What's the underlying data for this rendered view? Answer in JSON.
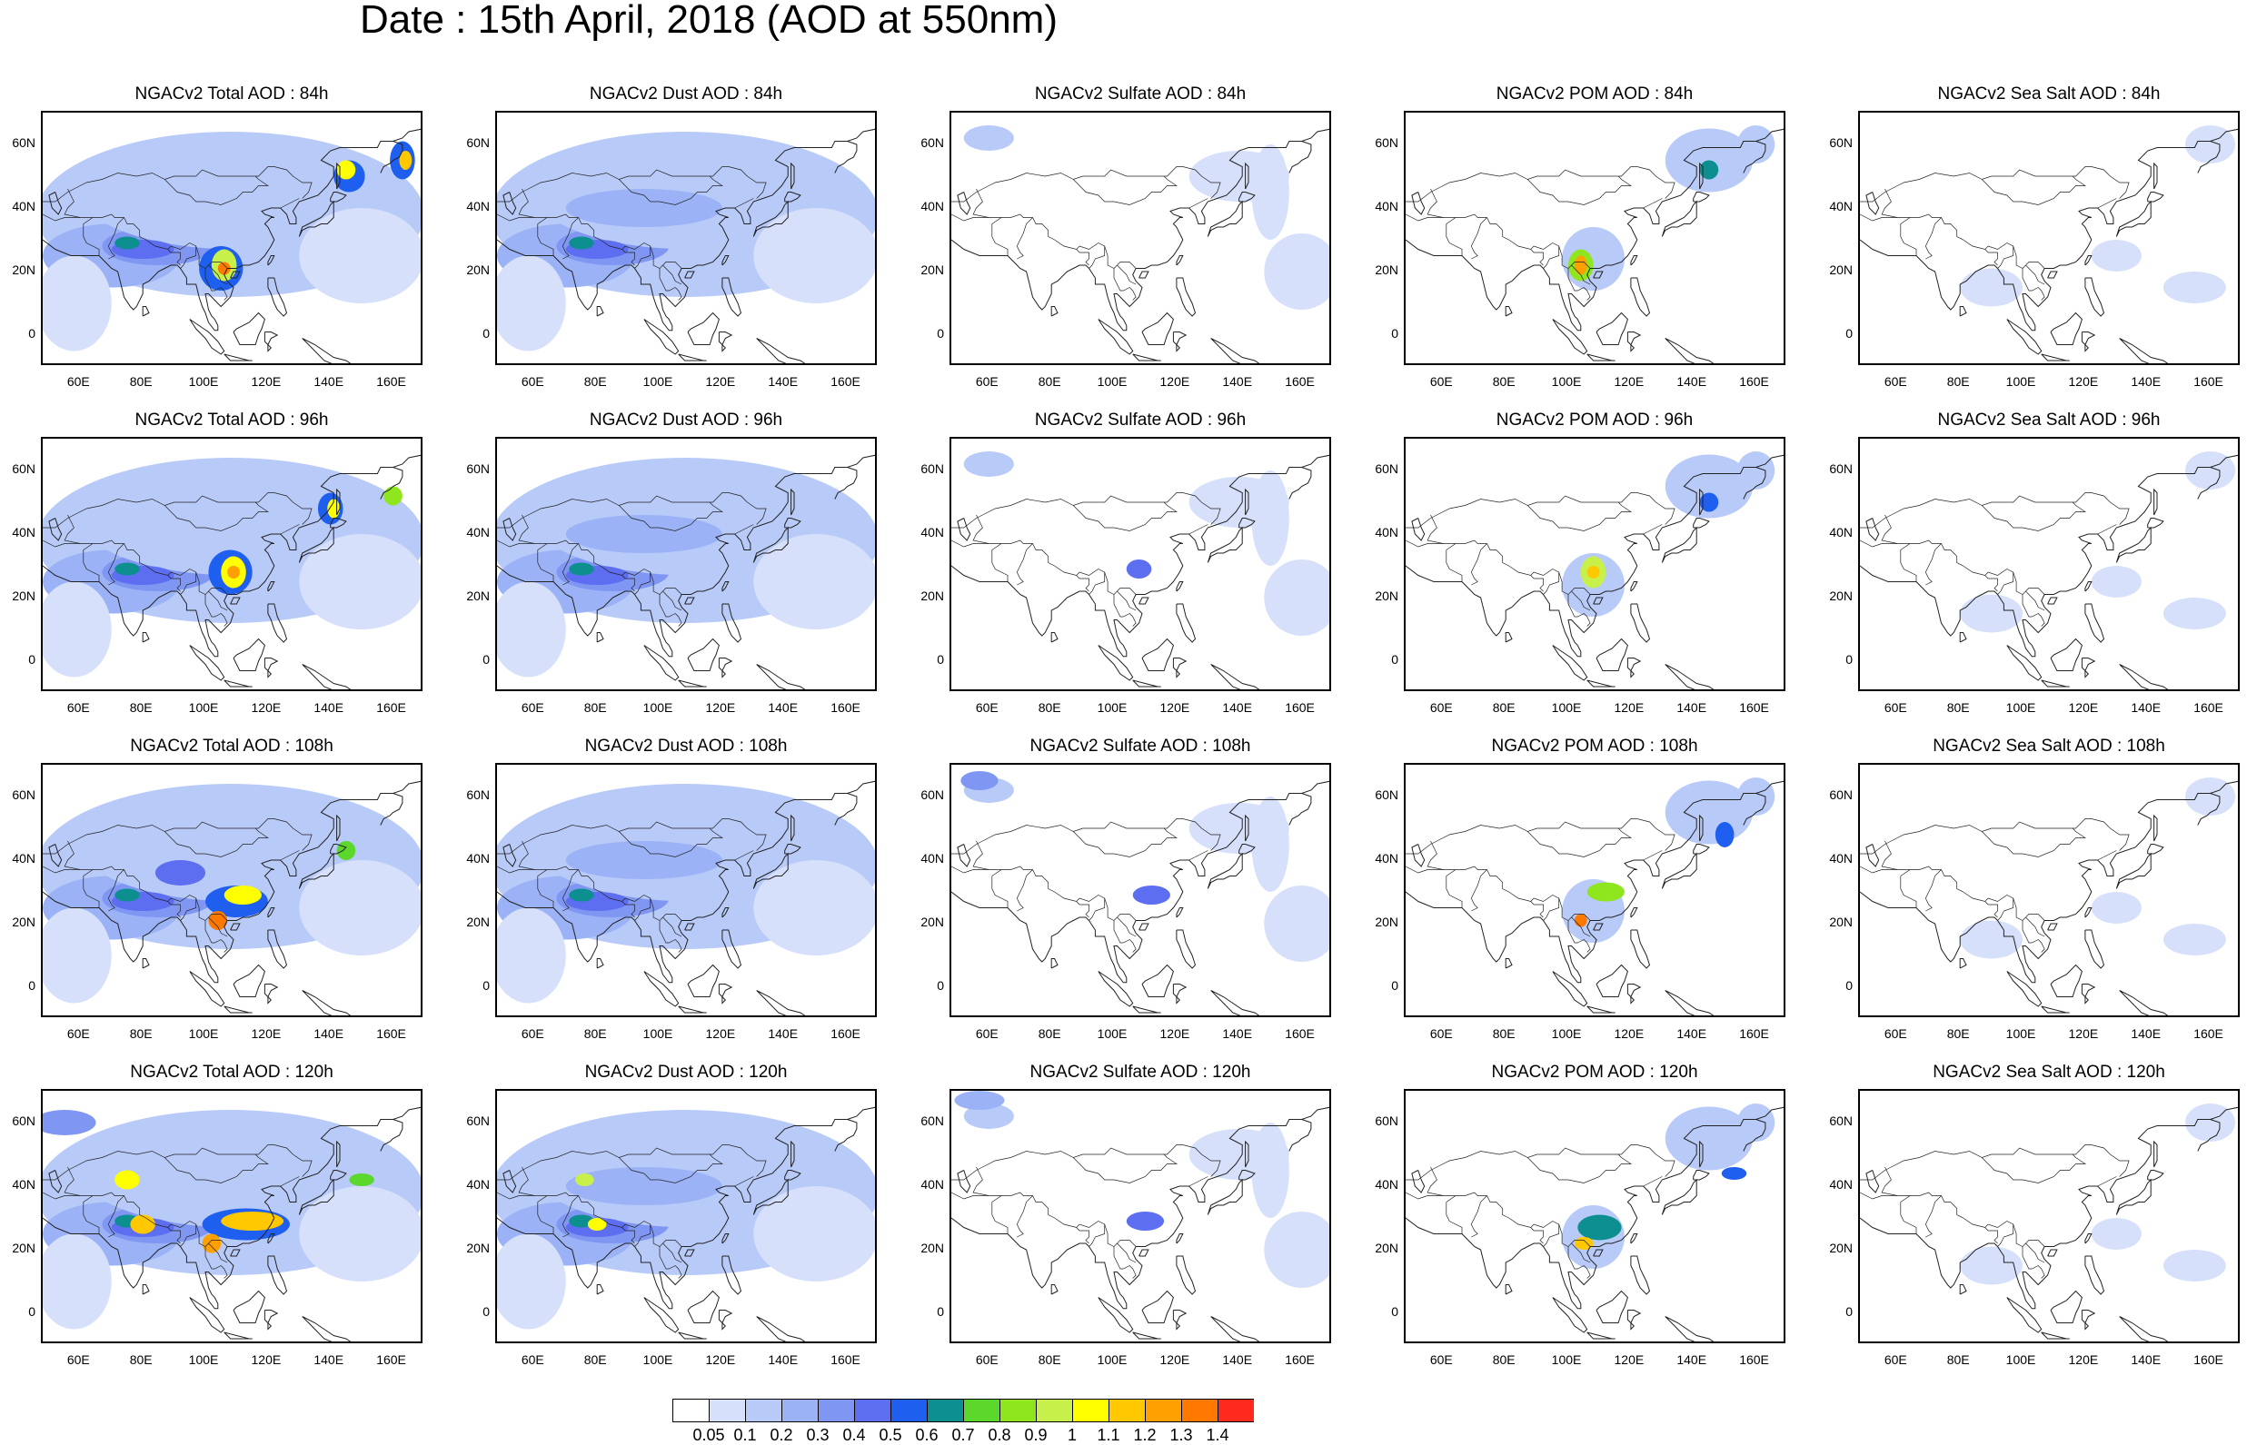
{
  "title": "Date : 15th April, 2018 (AOD at 550nm)",
  "model": "NGACv2",
  "columns": [
    {
      "species": "Total AOD",
      "key": "total"
    },
    {
      "species": "Dust AOD",
      "key": "dust"
    },
    {
      "species": "Sulfate AOD",
      "key": "sulfate"
    },
    {
      "species": "POM AOD",
      "key": "pom"
    },
    {
      "species": "Sea Salt AOD",
      "key": "seasalt"
    }
  ],
  "rows": [
    "84h",
    "96h",
    "108h",
    "120h"
  ],
  "panel_titles": [
    [
      "NGACv2 Total AOD : 84h",
      "NGACv2 Dust AOD : 84h",
      "NGACv2 Sulfate AOD : 84h",
      "NGACv2 POM AOD : 84h",
      "NGACv2 Sea Salt AOD : 84h"
    ],
    [
      "NGACv2 Total AOD : 96h",
      "NGACv2 Dust AOD : 96h",
      "NGACv2 Sulfate AOD : 96h",
      "NGACv2 POM AOD : 96h",
      "NGACv2 Sea Salt AOD : 96h"
    ],
    [
      "NGACv2 Total AOD : 108h",
      "NGACv2 Dust AOD : 108h",
      "NGACv2 Sulfate AOD : 108h",
      "NGACv2 POM AOD : 108h",
      "NGACv2 Sea Salt AOD : 108h"
    ],
    [
      "NGACv2 Total AOD : 120h",
      "NGACv2 Dust AOD : 120h",
      "NGACv2 Sulfate AOD : 120h",
      "NGACv2 POM AOD : 120h",
      "NGACv2 Sea Salt  AOD : 120h"
    ]
  ],
  "lat_labels": [
    "60N",
    "40N",
    "20N",
    "0"
  ],
  "lon_labels": [
    "60E",
    "80E",
    "100E",
    "120E",
    "140E",
    "160E"
  ],
  "colorbar": {
    "labels": [
      "0.05",
      "0.1",
      "0.2",
      "0.3",
      "0.4",
      "0.5",
      "0.6",
      "0.7",
      "0.8",
      "0.9",
      "1",
      "1.1",
      "1.2",
      "1.3",
      "1.4"
    ],
    "colors": [
      "#ffffff",
      "#d6e0fb",
      "#b8caf8",
      "#9bb3f6",
      "#7f97f2",
      "#5d6ef0",
      "#1e5ff0",
      "#0d8f8f",
      "#5bd82b",
      "#8fe61e",
      "#c8f04a",
      "#ffff00",
      "#ffc800",
      "#ffa000",
      "#ff7800",
      "#ff2a1e"
    ]
  }
}
